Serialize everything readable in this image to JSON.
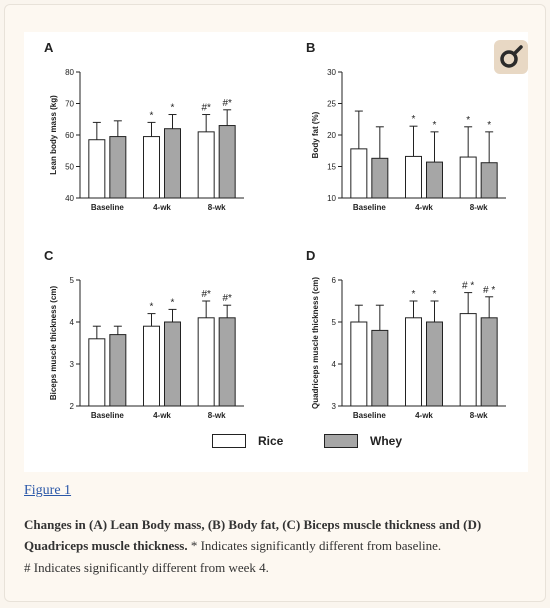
{
  "figure_link": "Figure 1",
  "caption": {
    "bold": "Changes in (A) Lean Body mass, (B) Body fat, (C) Biceps muscle thickness and (D) Quadriceps muscle thickness.",
    "note1": " * Indicates significantly different from baseline.",
    "note2": " # Indicates significantly different from week 4."
  },
  "legend": {
    "rice": "Rice",
    "whey": "Whey"
  },
  "colors": {
    "rice": "#ffffff",
    "whey": "#a6a6a6",
    "axis": "#222222",
    "link": "#2a57a8"
  },
  "icons": {
    "top_right": "magnify-share-icon"
  },
  "chart_data": [
    {
      "panel": "A",
      "type": "bar",
      "ylabel": "Lean body mass (kg)",
      "ylim": [
        40,
        80
      ],
      "yticks": [
        40,
        50,
        60,
        70,
        80
      ],
      "categories": [
        "Baseline",
        "4-wk",
        "8-wk"
      ],
      "series": [
        {
          "name": "Rice",
          "values": [
            58.5,
            59.5,
            61
          ],
          "errors": [
            5.5,
            4.5,
            5.5
          ]
        },
        {
          "name": "Whey",
          "values": [
            59.5,
            62,
            63
          ],
          "errors": [
            5,
            4.5,
            5
          ]
        }
      ],
      "annotations": [
        [
          "",
          "*",
          "#*"
        ],
        [
          "",
          "*",
          "#*"
        ]
      ]
    },
    {
      "panel": "B",
      "type": "bar",
      "ylabel": "Body fat (%)",
      "ylim": [
        10,
        30
      ],
      "yticks": [
        10,
        15,
        20,
        25,
        30
      ],
      "categories": [
        "Baseline",
        "4-wk",
        "8-wk"
      ],
      "series": [
        {
          "name": "Rice",
          "values": [
            17.8,
            16.6,
            16.5
          ],
          "errors": [
            6,
            4.8,
            4.8
          ]
        },
        {
          "name": "Whey",
          "values": [
            16.3,
            15.7,
            15.6
          ],
          "errors": [
            5,
            4.8,
            4.9
          ]
        }
      ],
      "annotations": [
        [
          "",
          "*",
          "*"
        ],
        [
          "",
          "*",
          "*"
        ]
      ]
    },
    {
      "panel": "C",
      "type": "bar",
      "ylabel": "Biceps muscle thickness (cm)",
      "ylim": [
        2,
        5
      ],
      "yticks": [
        2,
        3,
        4,
        5
      ],
      "categories": [
        "Baseline",
        "4-wk",
        "8-wk"
      ],
      "series": [
        {
          "name": "Rice",
          "values": [
            3.6,
            3.9,
            4.1
          ],
          "errors": [
            0.3,
            0.3,
            0.4
          ]
        },
        {
          "name": "Whey",
          "values": [
            3.7,
            4.0,
            4.1
          ],
          "errors": [
            0.2,
            0.3,
            0.3
          ]
        }
      ],
      "annotations": [
        [
          "",
          "*",
          "#*"
        ],
        [
          "",
          "*",
          "#*"
        ]
      ]
    },
    {
      "panel": "D",
      "type": "bar",
      "ylabel": "Quadriceps muscle thickness (cm)",
      "ylim": [
        3,
        6
      ],
      "yticks": [
        3,
        4,
        5,
        6
      ],
      "categories": [
        "Baseline",
        "4-wk",
        "8-wk"
      ],
      "series": [
        {
          "name": "Rice",
          "values": [
            5.0,
            5.1,
            5.2
          ],
          "errors": [
            0.4,
            0.4,
            0.5
          ]
        },
        {
          "name": "Whey",
          "values": [
            4.8,
            5.0,
            5.1
          ],
          "errors": [
            0.6,
            0.5,
            0.5
          ]
        }
      ],
      "annotations": [
        [
          "",
          "*",
          "# *"
        ],
        [
          "",
          "*",
          "# *"
        ]
      ]
    }
  ]
}
